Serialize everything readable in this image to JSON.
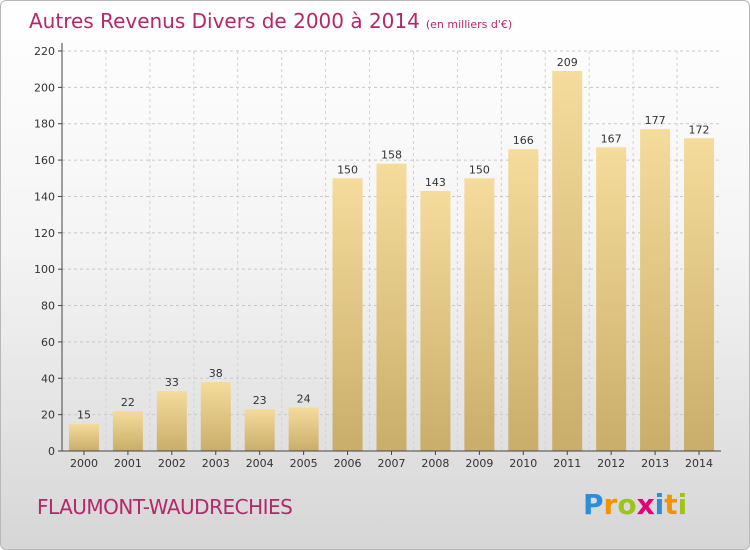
{
  "title": "Autres Revenus Divers de 2000 à 2014",
  "title_unit": "(en milliers d'€)",
  "place": "FLAUMONT-WAUDRECHIES",
  "logo": {
    "letters": [
      "P",
      "r",
      "o",
      "x",
      "i",
      "t",
      "i"
    ],
    "colors": [
      "#2a8fd8",
      "#f29400",
      "#9fc31d",
      "#e2007a",
      "#2a8fd8",
      "#f29400",
      "#9fc31d"
    ]
  },
  "colors": {
    "accent": "#b5276a",
    "bar_light": "#f5dc9c",
    "bar_dark": "#c9ad6a",
    "axis": "#444444"
  },
  "chart_data": {
    "type": "bar",
    "categories": [
      "2000",
      "2001",
      "2002",
      "2003",
      "2004",
      "2005",
      "2006",
      "2007",
      "2008",
      "2009",
      "2010",
      "2011",
      "2012",
      "2013",
      "2014"
    ],
    "values": [
      15,
      22,
      33,
      38,
      23,
      24,
      150,
      158,
      143,
      150,
      166,
      209,
      167,
      177,
      172
    ],
    "ylim": [
      0,
      220
    ],
    "yticks": [
      0,
      20,
      40,
      60,
      80,
      100,
      120,
      140,
      160,
      180,
      200,
      220
    ],
    "grid": true,
    "data_labels": true
  }
}
